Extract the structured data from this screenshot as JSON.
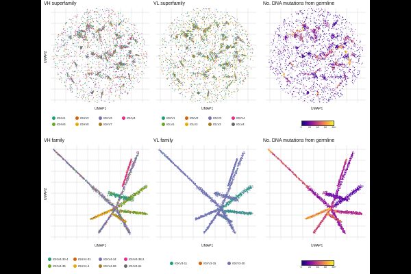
{
  "chart_data": [
    {
      "type": "scatter",
      "title": "VH superfamily",
      "xlabel": "UMAP1",
      "ylabel": "UMAP2",
      "grid": true,
      "color_by": "category",
      "legend": [
        "IGHV1",
        "IGHV2",
        "IGHV3",
        "IGHV4",
        "IGHV5",
        "IGHV6",
        "IGHV7"
      ],
      "series": [
        {
          "name": "IGHV1",
          "color": "#1b9e77",
          "share": 0.22
        },
        {
          "name": "IGHV2",
          "color": "#d95f02",
          "share": 0.05
        },
        {
          "name": "IGHV3",
          "color": "#7570b3",
          "share": 0.34
        },
        {
          "name": "IGHV4",
          "color": "#e7298a",
          "share": 0.18
        },
        {
          "name": "IGHV5",
          "color": "#66a61e",
          "share": 0.1
        },
        {
          "name": "IGHV6",
          "color": "#e6ab02",
          "share": 0.07
        },
        {
          "name": "IGHV7",
          "color": "#a6761d",
          "share": 0.04
        }
      ]
    },
    {
      "type": "scatter",
      "title": "VL superfamily",
      "xlabel": "UMAP1",
      "ylabel": "",
      "grid": true,
      "color_by": "category",
      "legend": [
        "IGKV1",
        "IGKV2",
        "IGKV3",
        "IGKV4",
        "IGLV1",
        "IGLV2",
        "IGLV3",
        "IGLV4"
      ],
      "series": [
        {
          "name": "IGKV1",
          "color": "#1b9e77",
          "share": 0.25
        },
        {
          "name": "IGKV2",
          "color": "#d95f02",
          "share": 0.08
        },
        {
          "name": "IGKV3",
          "color": "#7570b3",
          "share": 0.2
        },
        {
          "name": "IGKV4",
          "color": "#e7298a",
          "share": 0.05
        },
        {
          "name": "IGLV1",
          "color": "#66a61e",
          "share": 0.14
        },
        {
          "name": "IGLV2",
          "color": "#e6ab02",
          "share": 0.13
        },
        {
          "name": "IGLV3",
          "color": "#a6761d",
          "share": 0.1
        },
        {
          "name": "IGLV4",
          "color": "#666666",
          "share": 0.05
        }
      ]
    },
    {
      "type": "scatter",
      "title": "No. DNA mutations from germline",
      "xlabel": "UMAP1",
      "ylabel": "",
      "grid": true,
      "color_by": "continuous",
      "colorbar": {
        "ticks": [
          "0",
          "20",
          "40",
          "60",
          "80+"
        ],
        "range": [
          0,
          80
        ],
        "colors": [
          "#0d0887",
          "#5c01a6",
          "#9c179e",
          "#cc4778",
          "#ed7953",
          "#fdb42f",
          "#f0f921"
        ]
      }
    },
    {
      "type": "scatter",
      "title": "VH family",
      "xlabel": "UMAP1",
      "ylabel": "UMAP2",
      "grid": true,
      "color_by": "category",
      "legend": [
        "IGHV4-30-4",
        "IGHV4-31",
        "IGHV4-34",
        "IGHV4-38-2",
        "IGHV4-39",
        "IGHV4-4",
        "IGHV4-59",
        "IGHV4-61"
      ],
      "series": [
        {
          "name": "IGHV4-30-4",
          "color": "#1b9e77"
        },
        {
          "name": "IGHV4-31",
          "color": "#d95f02"
        },
        {
          "name": "IGHV4-34",
          "color": "#7570b3"
        },
        {
          "name": "IGHV4-38-2",
          "color": "#e7298a"
        },
        {
          "name": "IGHV4-39",
          "color": "#66a61e"
        },
        {
          "name": "IGHV4-4",
          "color": "#e6ab02"
        },
        {
          "name": "IGHV4-59",
          "color": "#a6761d"
        },
        {
          "name": "IGHV4-61",
          "color": "#666666"
        }
      ]
    },
    {
      "type": "scatter",
      "title": "VL family",
      "xlabel": "UMAP1",
      "ylabel": "",
      "grid": true,
      "color_by": "category",
      "legend": [
        "IGKV3-11",
        "IGKV3-15",
        "IGKV3-20"
      ],
      "series": [
        {
          "name": "IGKV3-11",
          "color": "#1b9e77"
        },
        {
          "name": "IGKV3-15",
          "color": "#d95f02"
        },
        {
          "name": "IGKV3-20",
          "color": "#7570b3"
        }
      ]
    },
    {
      "type": "scatter",
      "title": "No. DNA mutations from germline",
      "xlabel": "UMAP1",
      "ylabel": "",
      "grid": true,
      "color_by": "continuous",
      "colorbar": {
        "ticks": [
          "0",
          "20",
          "40",
          "60",
          "80+"
        ],
        "range": [
          0,
          80
        ],
        "colors": [
          "#0d0887",
          "#5c01a6",
          "#9c179e",
          "#cc4778",
          "#ed7953",
          "#fdb42f",
          "#f0f921"
        ]
      }
    }
  ]
}
